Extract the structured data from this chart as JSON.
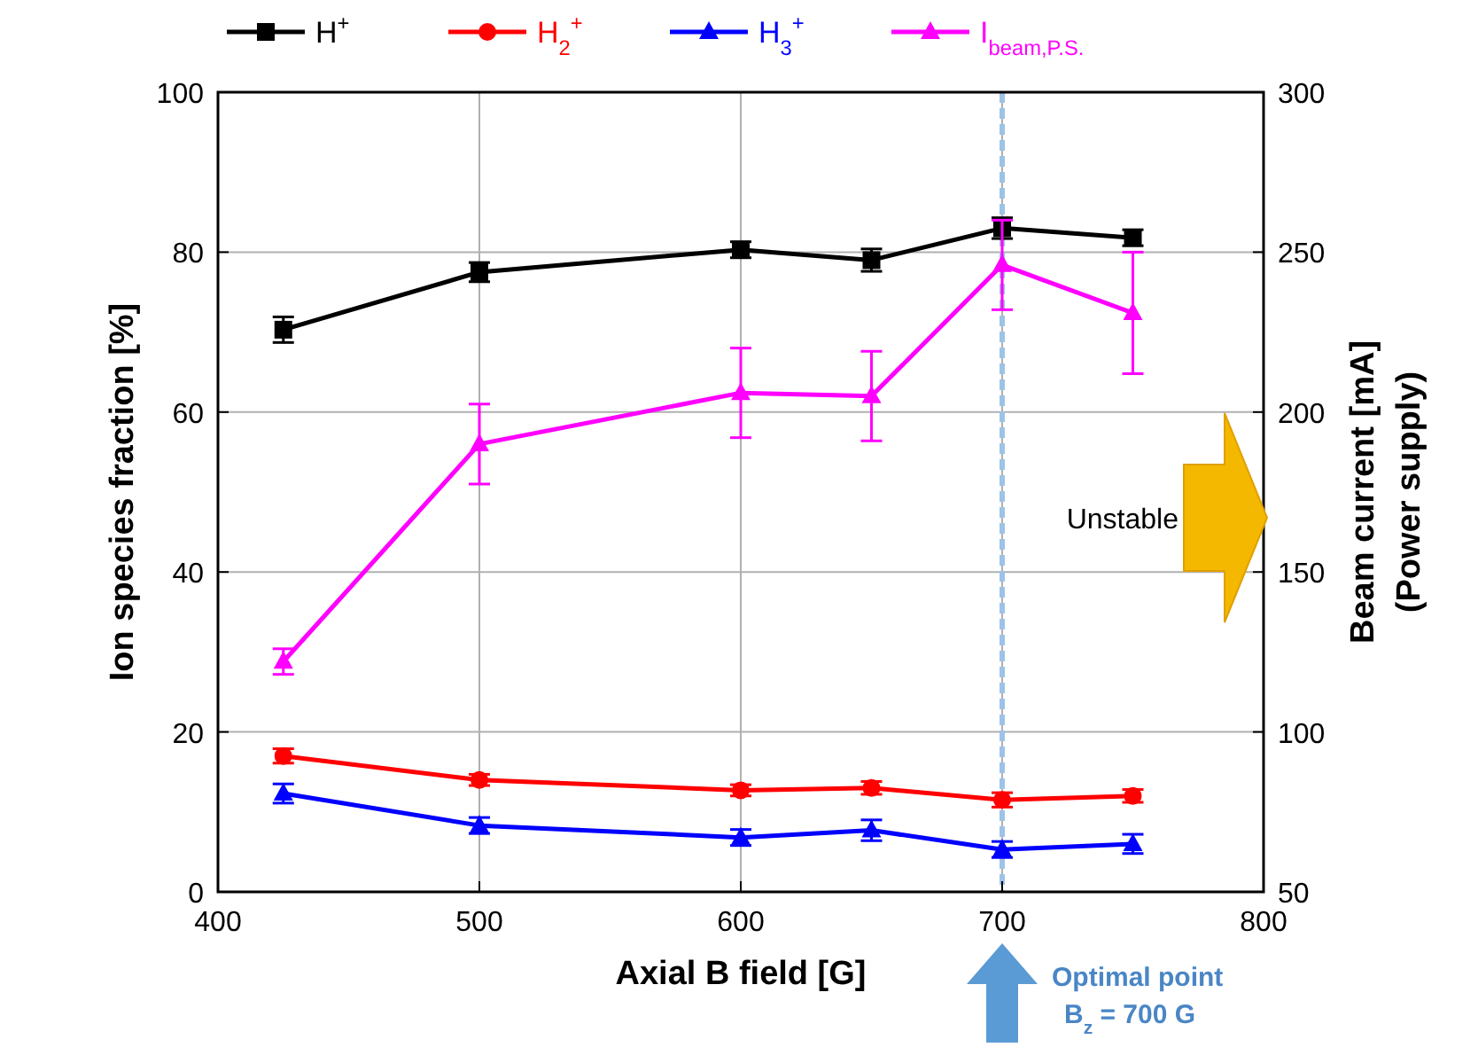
{
  "chart_data": {
    "type": "line",
    "xlabel": "Axial B field [G]",
    "ylabel": "Ion species fraction [%]",
    "y2label": "Beam current [mA]\n(Power supply)",
    "x": [
      425,
      500,
      600,
      650,
      700,
      750
    ],
    "xlim": [
      400,
      800
    ],
    "xticks": [
      400,
      500,
      600,
      700,
      800
    ],
    "ylim": [
      0,
      100
    ],
    "yticks": [
      0,
      20,
      40,
      60,
      80,
      100
    ],
    "y2lim": [
      50,
      300
    ],
    "y2ticks": [
      50,
      100,
      150,
      200,
      250,
      300
    ],
    "grid": true,
    "legend": "top",
    "line_style": "solid",
    "series": [
      {
        "name": "H$^{+}$",
        "color": "#000000",
        "marker": "square",
        "values": [
          70.3,
          77.5,
          80.3,
          79,
          83,
          81.8
        ],
        "errors": [
          1.6,
          1.2,
          1.0,
          1.4,
          1.3,
          1.0
        ]
      },
      {
        "name": "H$_{2}$$^{+}$",
        "color": "#ff0000",
        "marker": "circle",
        "values": [
          17,
          14,
          12.7,
          13,
          11.5,
          12
        ],
        "errors": [
          0.9,
          0.7,
          0.7,
          0.8,
          0.9,
          0.8
        ]
      },
      {
        "name": "H$_{3}$$^{+}$",
        "color": "#0000ff",
        "marker": "triangle",
        "values": [
          12.3,
          8.3,
          6.8,
          7.7,
          5.3,
          6.0
        ],
        "errors": [
          1.2,
          1.0,
          1.0,
          1.3,
          1.0,
          1.2
        ]
      },
      {
        "name": "I$_{beam,P.S.}$",
        "color": "#ff00ff",
        "marker": "triangle",
        "axis": "y2",
        "values": [
          122,
          190,
          206,
          205,
          246,
          231
        ],
        "errors": [
          4,
          12.5,
          14,
          14,
          14,
          19
        ]
      }
    ],
    "ref_lines": [
      {
        "axis": "x",
        "value": 700,
        "color": "#9dc3e6",
        "line_style": "dashed"
      }
    ],
    "annotations": [
      "Unstable",
      "Optimal point",
      "B$_{z}$ = 700 G"
    ]
  }
}
